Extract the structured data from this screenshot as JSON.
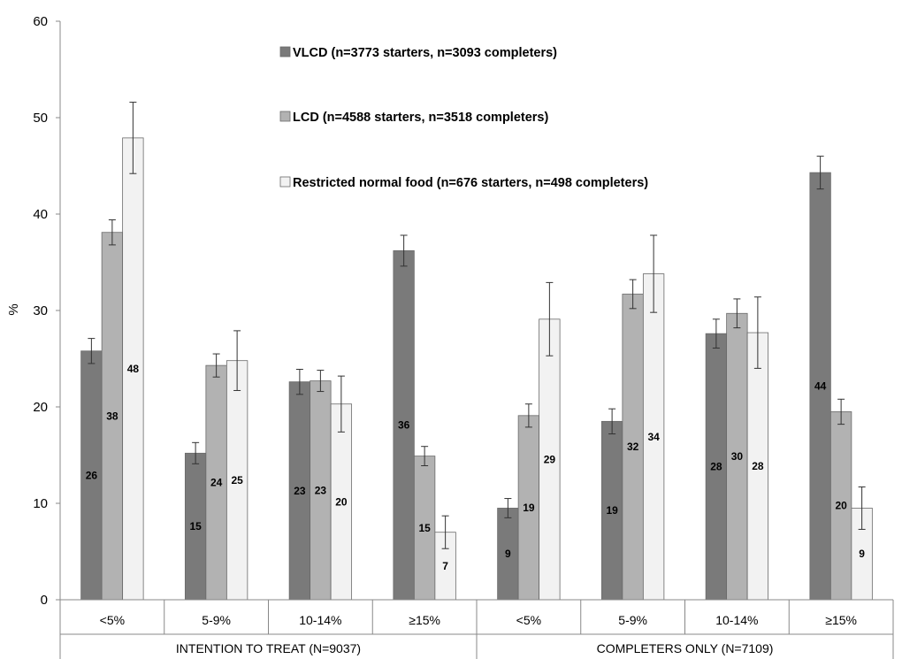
{
  "chart_data": {
    "type": "bar",
    "title": "",
    "xlabel": "",
    "ylabel": "%",
    "ylim": [
      0,
      60
    ],
    "yticks": [
      0,
      10,
      20,
      30,
      40,
      50,
      60
    ],
    "grid": false,
    "legend_position": "top",
    "groups": [
      {
        "label": "INTENTION TO TREAT (N=9037)",
        "categories": [
          "<5%",
          "5-9%",
          "10-14%",
          "≥15%"
        ]
      },
      {
        "label": "COMPLETERS ONLY (N=7109)",
        "categories": [
          "<5%",
          "5-9%",
          "10-14%",
          "≥15%"
        ]
      }
    ],
    "series": [
      {
        "name": "VLCD (n=3773 starters, n=3093 completers)",
        "color": "#7a7a7a",
        "values": [
          25.8,
          15.2,
          22.6,
          36.2,
          9.5,
          18.5,
          27.6,
          44.3
        ],
        "labels": [
          "26",
          "15",
          "23",
          "36",
          "9",
          "19",
          "28",
          "44"
        ],
        "error": [
          1.3,
          1.1,
          1.3,
          1.6,
          1.0,
          1.3,
          1.5,
          1.7
        ]
      },
      {
        "name": "LCD (n=4588 starters, n=3518 completers)",
        "color": "#b2b2b2",
        "values": [
          38.1,
          24.3,
          22.7,
          14.9,
          19.1,
          31.7,
          29.7,
          19.5
        ],
        "labels": [
          "38",
          "24",
          "23",
          "15",
          "19",
          "32",
          "30",
          "20"
        ],
        "error": [
          1.3,
          1.2,
          1.1,
          1.0,
          1.2,
          1.5,
          1.5,
          1.3
        ]
      },
      {
        "name": "Restricted normal food (n=676 starters, n=498 completers)",
        "color": "#f2f2f2",
        "values": [
          47.9,
          24.8,
          20.3,
          7.0,
          29.1,
          33.8,
          27.7,
          9.5
        ],
        "labels": [
          "48",
          "25",
          "20",
          "7",
          "29",
          "34",
          "28",
          "9"
        ],
        "error": [
          3.7,
          3.1,
          2.9,
          1.7,
          3.8,
          4.0,
          3.7,
          2.2
        ]
      }
    ]
  }
}
